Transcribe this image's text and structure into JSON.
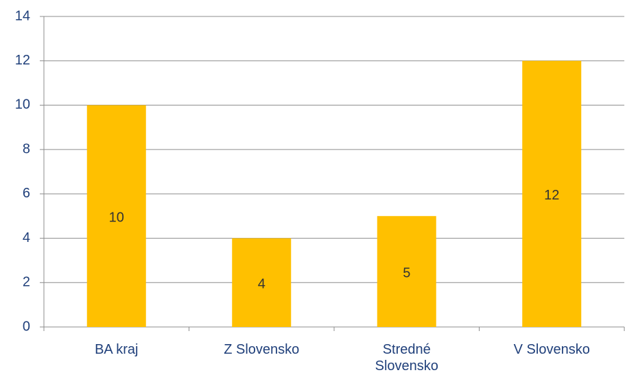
{
  "chart_data": {
    "type": "bar",
    "categories": [
      "BA kraj",
      "Z Slovensko",
      "Stredné Slovensko",
      "V Slovensko"
    ],
    "values": [
      10,
      4,
      5,
      12
    ],
    "color": "#ffc000",
    "ylim": [
      0,
      14
    ],
    "yticks": [
      0,
      2,
      4,
      6,
      8,
      10,
      12,
      14
    ],
    "grid": true
  }
}
